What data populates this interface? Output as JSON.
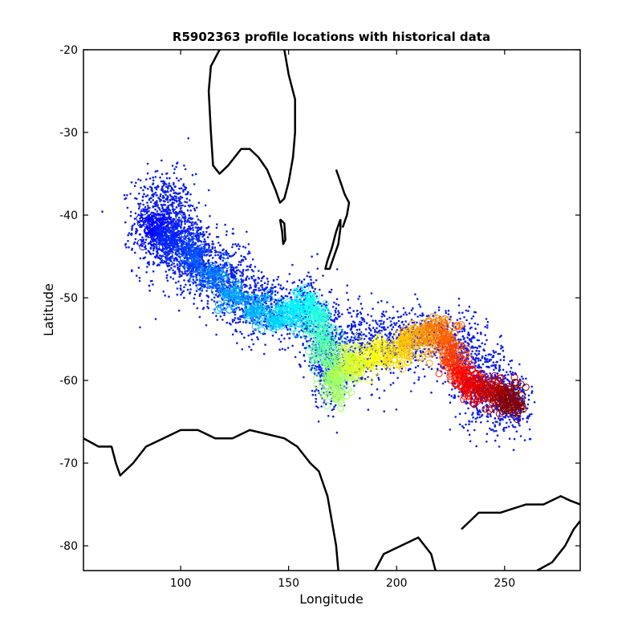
{
  "chart_data": {
    "type": "scatter",
    "title": "R5902363 profile locations with historical data",
    "xlabel": "Longitude",
    "ylabel": "Latitude",
    "xlim": [
      55,
      285
    ],
    "ylim": [
      -83,
      -20
    ],
    "xticks": [
      100,
      150,
      200,
      250
    ],
    "yticks": [
      -20,
      -30,
      -40,
      -50,
      -60,
      -70,
      -80
    ],
    "grid": false,
    "colors": {
      "historical": "#0a1ef0",
      "coastline": "#000000",
      "colormap": [
        "#0000ff",
        "#00a0ff",
        "#00ffff",
        "#80ff80",
        "#ffff00",
        "#ff8000",
        "#ff0000",
        "#800000"
      ]
    },
    "historical_clusters": [
      {
        "x": 92,
        "y": -41,
        "sx": 7,
        "sy": 3,
        "n": 900
      },
      {
        "x": 105,
        "y": -44.5,
        "sx": 6,
        "sy": 2.2,
        "n": 450
      },
      {
        "x": 120,
        "y": -47.5,
        "sx": 7,
        "sy": 2.2,
        "n": 450
      },
      {
        "x": 138,
        "y": -51,
        "sx": 8,
        "sy": 2,
        "n": 420
      },
      {
        "x": 158,
        "y": -52,
        "sx": 4,
        "sy": 2.5,
        "n": 250
      },
      {
        "x": 168,
        "y": -57,
        "sx": 5,
        "sy": 3,
        "n": 400
      },
      {
        "x": 185,
        "y": -56,
        "sx": 9,
        "sy": 2.2,
        "n": 450
      },
      {
        "x": 210,
        "y": -55,
        "sx": 9,
        "sy": 2,
        "n": 400
      },
      {
        "x": 232,
        "y": -57,
        "sx": 5,
        "sy": 2.5,
        "n": 250
      },
      {
        "x": 243,
        "y": -61,
        "sx": 7,
        "sy": 2.5,
        "n": 450
      },
      {
        "x": 254,
        "y": -63,
        "sx": 4,
        "sy": 1.5,
        "n": 200
      }
    ],
    "profile_track": [
      [
        88,
        -41.5
      ],
      [
        95,
        -43
      ],
      [
        105,
        -45
      ],
      [
        115,
        -47.5
      ],
      [
        125,
        -49.5
      ],
      [
        135,
        -51.5
      ],
      [
        145,
        -52.5
      ],
      [
        152,
        -52
      ],
      [
        158,
        -51
      ],
      [
        163,
        -52
      ],
      [
        166,
        -54.5
      ],
      [
        167,
        -57
      ],
      [
        170,
        -59.5
      ],
      [
        172,
        -60.5
      ],
      [
        176,
        -58
      ],
      [
        182,
        -57.5
      ],
      [
        190,
        -57
      ],
      [
        198,
        -56.5
      ],
      [
        205,
        -55.5
      ],
      [
        212,
        -54.5
      ],
      [
        218,
        -54
      ],
      [
        223,
        -55
      ],
      [
        226,
        -57
      ],
      [
        229,
        -59
      ],
      [
        233,
        -60.5
      ],
      [
        238,
        -61
      ],
      [
        244,
        -61.5
      ],
      [
        250,
        -62
      ],
      [
        254,
        -62.5
      ]
    ],
    "coastlines": [
      [
        [
          55,
          -67
        ],
        [
          62,
          -68
        ],
        [
          68,
          -68
        ],
        [
          70,
          -70
        ],
        [
          72,
          -71.5
        ],
        [
          78,
          -70
        ],
        [
          84,
          -68
        ],
        [
          92,
          -67
        ],
        [
          100,
          -66
        ],
        [
          108,
          -66
        ],
        [
          116,
          -67
        ],
        [
          124,
          -67
        ],
        [
          132,
          -66
        ],
        [
          140,
          -66.5
        ],
        [
          148,
          -67
        ],
        [
          154,
          -68
        ],
        [
          160,
          -70
        ],
        [
          164,
          -71
        ],
        [
          168,
          -74
        ],
        [
          170,
          -77
        ],
        [
          172,
          -80
        ],
        [
          173,
          -83
        ]
      ],
      [
        [
          190,
          -83
        ],
        [
          194,
          -81
        ],
        [
          202,
          -80
        ],
        [
          210,
          -79
        ],
        [
          216,
          -81
        ],
        [
          218,
          -83
        ]
      ],
      [
        [
          230,
          -78
        ],
        [
          238,
          -76
        ],
        [
          248,
          -76
        ],
        [
          254,
          -75.5
        ],
        [
          260,
          -75
        ],
        [
          268,
          -75
        ],
        [
          276,
          -74
        ],
        [
          280,
          -74.5
        ],
        [
          285,
          -75
        ]
      ],
      [
        [
          265,
          -83
        ],
        [
          272,
          -82
        ],
        [
          278,
          -80
        ],
        [
          282,
          -78
        ],
        [
          285,
          -77
        ]
      ],
      [
        [
          118,
          -20
        ],
        [
          114,
          -22
        ],
        [
          113,
          -25
        ],
        [
          114,
          -30
        ],
        [
          115,
          -34
        ],
        [
          118,
          -35
        ],
        [
          122,
          -34
        ],
        [
          128,
          -32
        ],
        [
          132,
          -32
        ],
        [
          136,
          -33
        ],
        [
          140,
          -34.5
        ],
        [
          144,
          -37
        ],
        [
          146,
          -38.5
        ],
        [
          148,
          -38
        ],
        [
          150,
          -36
        ],
        [
          152,
          -33
        ],
        [
          153,
          -30
        ],
        [
          153,
          -26
        ],
        [
          150,
          -23
        ],
        [
          148,
          -20
        ]
      ],
      [
        [
          146,
          -40.5
        ],
        [
          147,
          -42
        ],
        [
          147.5,
          -43.5
        ],
        [
          148.5,
          -43
        ],
        [
          148,
          -41
        ],
        [
          146,
          -40.5
        ]
      ],
      [
        [
          172,
          -34.5
        ],
        [
          174,
          -36
        ],
        [
          176,
          -37.5
        ],
        [
          178,
          -38.5
        ],
        [
          177,
          -40
        ],
        [
          175,
          -41.5
        ]
      ],
      [
        [
          174,
          -40.5
        ],
        [
          172,
          -42
        ],
        [
          170,
          -44
        ],
        [
          168,
          -45.5
        ],
        [
          167,
          -46.5
        ],
        [
          169,
          -46.5
        ],
        [
          171,
          -45
        ],
        [
          173,
          -43.5
        ],
        [
          174,
          -41.5
        ],
        [
          174,
          -40.5
        ]
      ]
    ]
  }
}
